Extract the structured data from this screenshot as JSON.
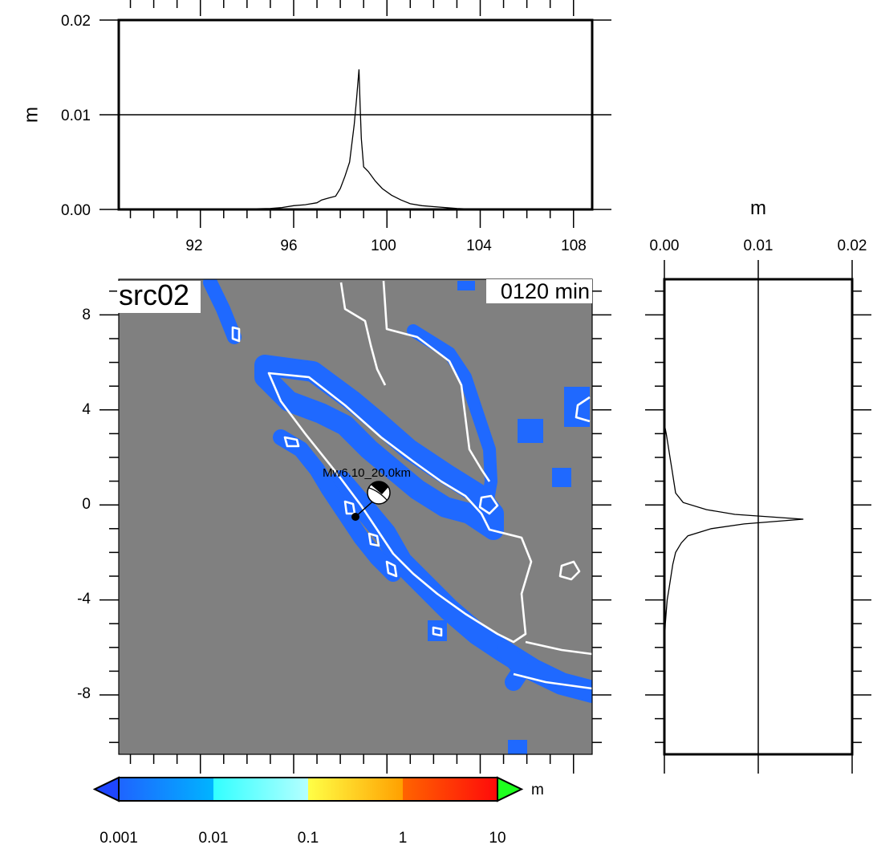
{
  "chart_data": [
    {
      "type": "line",
      "id": "top-profile",
      "ylabel": "m",
      "xlim": [
        88.5,
        108.8
      ],
      "ylim": [
        0,
        0.02
      ],
      "yticks": [
        "0.00",
        "0.01",
        "0.02"
      ],
      "xticks": [
        "92",
        "96",
        "100",
        "104",
        "108"
      ],
      "grid_line": 0.01,
      "x": [
        88.5,
        93,
        95,
        95.5,
        96,
        96.5,
        97,
        97.2,
        97.5,
        97.8,
        98.0,
        98.2,
        98.4,
        98.6,
        98.7,
        98.8,
        98.85,
        98.9,
        99.0,
        99.2,
        99.5,
        99.8,
        100.2,
        100.6,
        101.0,
        101.5,
        102.0,
        102.5,
        103,
        104,
        108.8
      ],
      "y": [
        0,
        0,
        0.0001,
        0.0002,
        0.0004,
        0.0005,
        0.0007,
        0.001,
        0.0012,
        0.0014,
        0.0022,
        0.0035,
        0.005,
        0.009,
        0.0118,
        0.0148,
        0.011,
        0.0075,
        0.0045,
        0.004,
        0.003,
        0.0022,
        0.0015,
        0.001,
        0.0006,
        0.0004,
        0.0003,
        0.0002,
        0.0001,
        0,
        0
      ]
    },
    {
      "type": "line",
      "id": "right-profile",
      "xlabel": "m",
      "xlim": [
        0,
        0.02
      ],
      "ylim": [
        -10.5,
        9.5
      ],
      "xticks": [
        "0.00",
        "0.01",
        "0.02"
      ],
      "grid_line": 0.01,
      "lat": [
        9.5,
        3.4,
        3.0,
        2.5,
        2.0,
        1.5,
        1.0,
        0.5,
        0.1,
        -0.2,
        -0.4,
        -0.6,
        -0.8,
        -1.0,
        -1.3,
        -1.6,
        -2.0,
        -2.5,
        -3.0,
        -3.5,
        -4.0,
        -4.5,
        -5.0,
        -5.5,
        -6.0,
        -10.5
      ],
      "value": [
        0,
        0,
        0.0002,
        0.0004,
        0.0006,
        0.0008,
        0.001,
        0.0012,
        0.002,
        0.0045,
        0.0075,
        0.0148,
        0.0085,
        0.005,
        0.0025,
        0.0018,
        0.0012,
        0.0009,
        0.0007,
        0.0005,
        0.0003,
        0.0002,
        0.0001,
        5e-05,
        0,
        0
      ]
    },
    {
      "type": "heatmap",
      "id": "map",
      "corner_label": "src02",
      "time_label": "0120 min",
      "event_label": "Mw6.10_20.0km",
      "xlim": [
        88.5,
        108.8
      ],
      "ylim": [
        -10.5,
        9.5
      ],
      "yticks": [
        "8",
        "4",
        "0",
        "-4",
        "-8"
      ],
      "background_color": "#808080",
      "wave_color": "#1f69ff",
      "coast_color": "#ffffff",
      "epicenter": {
        "lon": 98.3,
        "lat": -0.6
      },
      "beachball": {
        "lon": 99.2,
        "lat": 0.4
      }
    },
    {
      "type": "colorbar",
      "id": "colorbar",
      "unit": "m",
      "ticks": [
        "0.001",
        "0.01",
        "0.1",
        "1",
        "10"
      ],
      "segments": [
        {
          "from": "#1e64ff",
          "to": "#00b4ff"
        },
        {
          "from": "#32ffff",
          "to": "#b4ffff"
        },
        {
          "from": "#ffff46",
          "to": "#ffa000"
        },
        {
          "from": "#ff6400",
          "to": "#ff0a0a"
        }
      ],
      "under_color": "#1e46ff",
      "over_color": "#1eff1e"
    }
  ]
}
